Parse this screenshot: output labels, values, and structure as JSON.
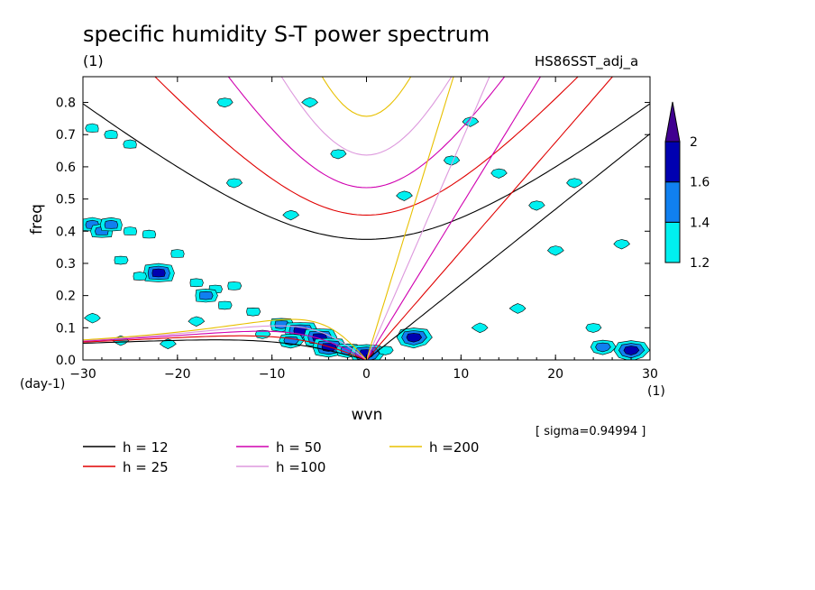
{
  "header": {
    "title": "specific humidity S-T power spectrum",
    "units": "(1)",
    "dataset": "HS86SST_adj_a"
  },
  "axes": {
    "ylabel": "freq",
    "xlabel": "wvn",
    "y_units": "(day-1)",
    "x_units": "(1)"
  },
  "sigma_note": "[ sigma=0.94994 ]",
  "legend": {
    "items": [
      {
        "label": "h = 12",
        "color": "#000000"
      },
      {
        "label": "h = 25",
        "color": "#e00000"
      },
      {
        "label": "h = 50",
        "color": "#d000b0"
      },
      {
        "label": "h =100",
        "color": "#dd99dd"
      },
      {
        "label": "h =200",
        "color": "#e8c000"
      }
    ]
  },
  "colorbar": {
    "levels": [
      "1.2",
      "1.4",
      "1.6",
      "2"
    ],
    "colors": [
      "#00f0f0",
      "#1080f0",
      "#0000b0",
      "#400090"
    ]
  },
  "chart_data": {
    "type": "contour",
    "title": "specific humidity S-T power spectrum",
    "xlabel": "wvn",
    "ylabel": "freq",
    "xlim": [
      -30,
      30
    ],
    "ylim": [
      0,
      0.88
    ],
    "xticks": [
      -30,
      -20,
      -10,
      0,
      10,
      20,
      30
    ],
    "yticks": [
      0.0,
      0.1,
      0.2,
      0.3,
      0.4,
      0.5,
      0.6,
      0.7,
      0.8
    ],
    "grid": false,
    "contour_levels": [
      1.2,
      1.4,
      1.6,
      2.0
    ],
    "dispersion_curves": [
      {
        "name": "h = 12",
        "equivalent_depth": 12
      },
      {
        "name": "h = 25",
        "equivalent_depth": 25
      },
      {
        "name": "h = 50",
        "equivalent_depth": 50
      },
      {
        "name": "h =100",
        "equivalent_depth": 100
      },
      {
        "name": "h =200",
        "equivalent_depth": 200
      }
    ],
    "blobs": [
      {
        "x": -29,
        "y": 0.72,
        "level": 1
      },
      {
        "x": -27,
        "y": 0.7,
        "level": 1
      },
      {
        "x": -25,
        "y": 0.67,
        "level": 1
      },
      {
        "x": -29,
        "y": 0.42,
        "level": 2
      },
      {
        "x": -28,
        "y": 0.4,
        "level": 2
      },
      {
        "x": -27,
        "y": 0.42,
        "level": 2
      },
      {
        "x": -25,
        "y": 0.4,
        "level": 1
      },
      {
        "x": -23,
        "y": 0.39,
        "level": 1
      },
      {
        "x": -20,
        "y": 0.33,
        "level": 1
      },
      {
        "x": -22,
        "y": 0.27,
        "level": 3
      },
      {
        "x": -24,
        "y": 0.26,
        "level": 1
      },
      {
        "x": -18,
        "y": 0.24,
        "level": 1
      },
      {
        "x": -16,
        "y": 0.22,
        "level": 1
      },
      {
        "x": -17,
        "y": 0.2,
        "level": 2
      },
      {
        "x": -15,
        "y": 0.17,
        "level": 1
      },
      {
        "x": -14,
        "y": 0.23,
        "level": 1
      },
      {
        "x": -26,
        "y": 0.31,
        "level": 1
      },
      {
        "x": -12,
        "y": 0.15,
        "level": 1
      },
      {
        "x": -9,
        "y": 0.11,
        "level": 2
      },
      {
        "x": -7,
        "y": 0.09,
        "level": 3
      },
      {
        "x": -5,
        "y": 0.07,
        "level": 3
      },
      {
        "x": -4,
        "y": 0.04,
        "level": 3
      },
      {
        "x": -2,
        "y": 0.03,
        "level": 2
      },
      {
        "x": 0,
        "y": 0.02,
        "level": 3
      },
      {
        "x": -8,
        "y": 0.06,
        "level": 2
      },
      {
        "x": -11,
        "y": 0.08,
        "level": 1
      },
      {
        "x": 2,
        "y": 0.03,
        "level": 1
      },
      {
        "x": 5,
        "y": 0.07,
        "level": 3
      },
      {
        "x": 25,
        "y": 0.04,
        "level": 2
      },
      {
        "x": 28,
        "y": 0.03,
        "level": 3
      },
      {
        "x": 24,
        "y": 0.1,
        "level": 1
      },
      {
        "x": -15,
        "y": 0.8,
        "level": 1
      },
      {
        "x": -3,
        "y": 0.64,
        "level": 1
      },
      {
        "x": -14,
        "y": 0.55,
        "level": 1
      },
      {
        "x": 9,
        "y": 0.62,
        "level": 1
      },
      {
        "x": 14,
        "y": 0.58,
        "level": 1
      },
      {
        "x": 18,
        "y": 0.48,
        "level": 1
      },
      {
        "x": 22,
        "y": 0.55,
        "level": 1
      },
      {
        "x": 27,
        "y": 0.36,
        "level": 1
      },
      {
        "x": 20,
        "y": 0.34,
        "level": 1
      },
      {
        "x": 11,
        "y": 0.74,
        "level": 1
      },
      {
        "x": 4,
        "y": 0.51,
        "level": 1
      },
      {
        "x": -8,
        "y": 0.45,
        "level": 1
      },
      {
        "x": -18,
        "y": 0.12,
        "level": 1
      },
      {
        "x": -21,
        "y": 0.05,
        "level": 1
      },
      {
        "x": -6,
        "y": 0.8,
        "level": 1
      },
      {
        "x": -26,
        "y": 0.06,
        "level": 1
      },
      {
        "x": -29,
        "y": 0.13,
        "level": 1
      },
      {
        "x": 12,
        "y": 0.1,
        "level": 1
      },
      {
        "x": 16,
        "y": 0.16,
        "level": 1
      }
    ]
  }
}
